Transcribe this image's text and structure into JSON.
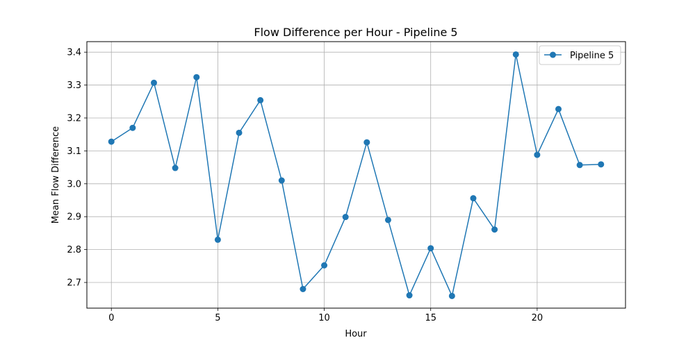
{
  "chart_data": {
    "type": "line",
    "title": "Flow Difference per Hour - Pipeline 5",
    "xlabel": "Hour",
    "ylabel": "Mean Flow Difference",
    "xlim": [
      -1.15,
      24.15
    ],
    "ylim": [
      2.622,
      3.432
    ],
    "xticks": [
      0,
      5,
      10,
      15,
      20
    ],
    "xtick_labels": [
      "0",
      "5",
      "10",
      "15",
      "20"
    ],
    "yticks": [
      2.7,
      2.8,
      2.9,
      3.0,
      3.1,
      3.2,
      3.3,
      3.4
    ],
    "ytick_labels": [
      "2.7",
      "2.8",
      "2.9",
      "3.0",
      "3.1",
      "3.2",
      "3.3",
      "3.4"
    ],
    "grid": true,
    "legend_position": "top-right",
    "series": [
      {
        "name": "Pipeline 5",
        "color": "#1f77b4",
        "marker": "circle",
        "x": [
          0,
          1,
          2,
          3,
          4,
          5,
          6,
          7,
          8,
          9,
          10,
          11,
          12,
          13,
          14,
          15,
          16,
          17,
          18,
          19,
          20,
          21,
          22,
          23
        ],
        "y": [
          3.128,
          3.17,
          3.307,
          3.048,
          3.324,
          2.83,
          3.155,
          3.254,
          3.01,
          2.68,
          2.752,
          2.899,
          3.126,
          2.89,
          2.661,
          2.804,
          2.659,
          2.956,
          2.861,
          3.393,
          3.088,
          3.227,
          3.057,
          3.059
        ]
      }
    ]
  }
}
